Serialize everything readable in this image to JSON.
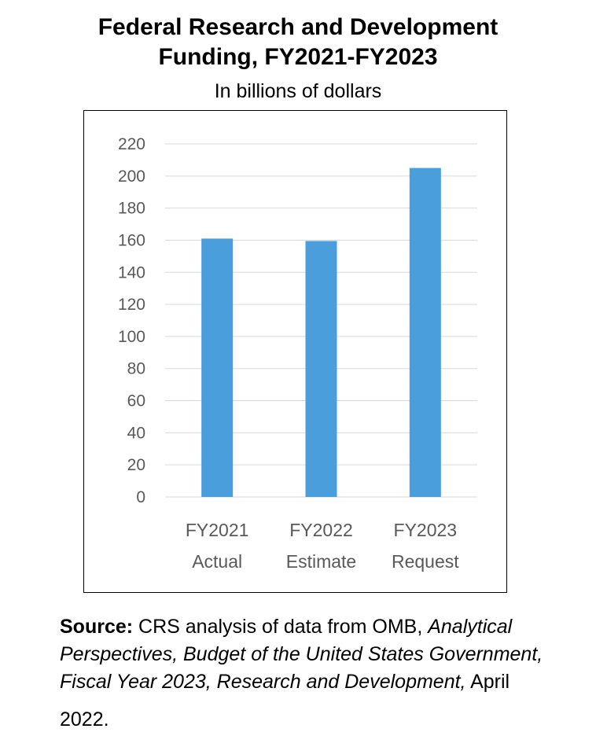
{
  "title_line1": "Federal Research and Development",
  "title_line2": "Funding, FY2021-FY2023",
  "subtitle": "In billions of dollars",
  "source": {
    "label": "Source:",
    "text_before": " CRS analysis of data from OMB, ",
    "italic_text": "Analytical Perspectives, Budget of the United States Government, Fiscal Year 2023, Research and Development,",
    "text_after": " April",
    "date_line": "2022."
  },
  "chart_data": {
    "type": "bar",
    "title": "Federal Research and Development Funding, FY2021-FY2023",
    "subtitle": "In billions of dollars",
    "categories": [
      [
        "FY2021",
        "Actual"
      ],
      [
        "FY2022",
        "Estimate"
      ],
      [
        "FY2023",
        "Request"
      ]
    ],
    "values": [
      161,
      159.5,
      205
    ],
    "ylim": [
      0,
      220
    ],
    "yticks": [
      0,
      20,
      40,
      60,
      80,
      100,
      120,
      140,
      160,
      180,
      200,
      220
    ],
    "grid": true,
    "legend": "none",
    "colors": {
      "bar": "#4a9edc",
      "grid": "#d9d9d9",
      "tick_label": "#595959"
    }
  }
}
